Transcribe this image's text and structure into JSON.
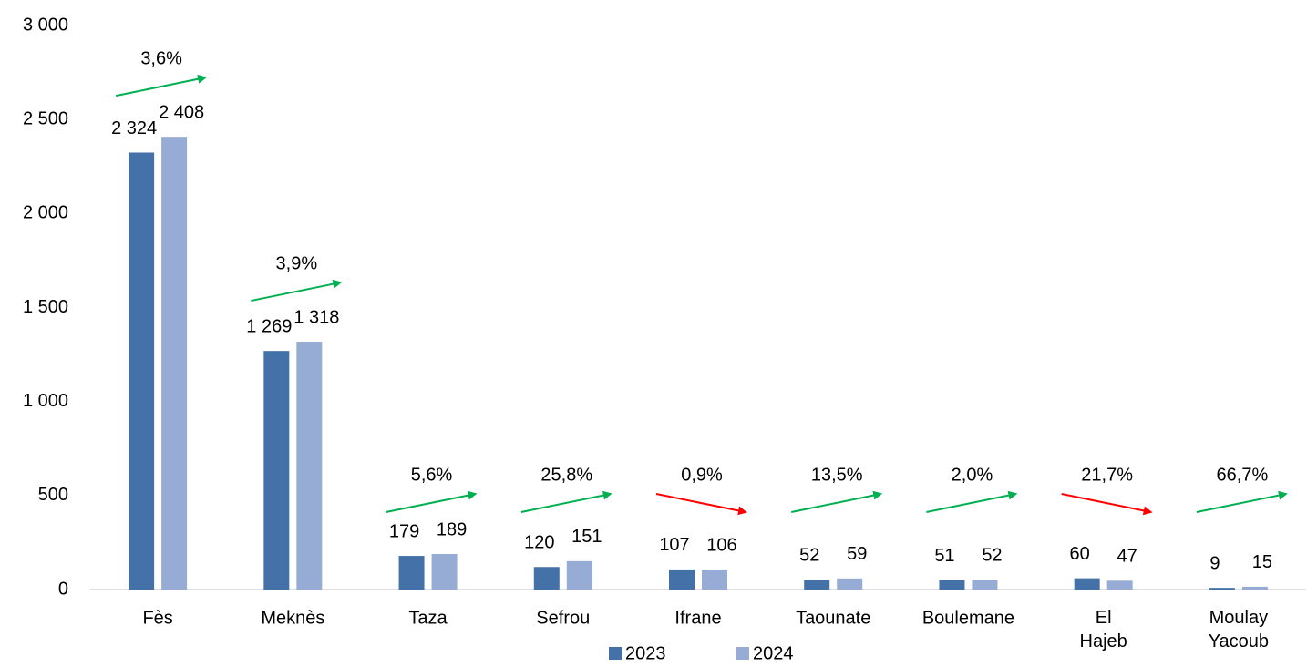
{
  "chart_data": {
    "type": "bar",
    "categories": [
      "Fès",
      "Meknès",
      "Taza",
      "Sefrou",
      "Ifrane",
      "Taounate",
      "Boulemane",
      "El Hajeb",
      "Moulay Yacoub"
    ],
    "series": [
      {
        "name": "2023",
        "color": "#4472a8",
        "values": [
          2324,
          1269,
          179,
          120,
          107,
          52,
          51,
          60,
          9
        ],
        "value_labels": [
          "2 324",
          "1 269",
          "179",
          "120",
          "107",
          "52",
          "51",
          "60",
          "9"
        ]
      },
      {
        "name": "2024",
        "color": "#96acd4",
        "values": [
          2408,
          1318,
          189,
          151,
          106,
          59,
          52,
          47,
          15
        ],
        "value_labels": [
          "2 408",
          "1 318",
          "189",
          "151",
          "106",
          "59",
          "52",
          "47",
          "15"
        ]
      }
    ],
    "annotations": [
      {
        "label": "3,6%",
        "color": "#00b050"
      },
      {
        "label": "3,9%",
        "color": "#00b050"
      },
      {
        "label": "5,6%",
        "color": "#00b050"
      },
      {
        "label": "25,8%",
        "color": "#00b050"
      },
      {
        "label": "0,9%",
        "color": "#ff0000"
      },
      {
        "label": "13,5%",
        "color": "#00b050"
      },
      {
        "label": "2,0%",
        "color": "#00b050"
      },
      {
        "label": "21,7%",
        "color": "#ff0000"
      },
      {
        "label": "66,7%",
        "color": "#00b050"
      }
    ],
    "ylim": [
      0,
      3000
    ],
    "yticks": [
      0,
      500,
      {
        "value": 1000,
        "label": "1 000"
      },
      {
        "value": 1500,
        "label": "1 500"
      },
      {
        "value": 2000,
        "label": "2 000"
      },
      {
        "value": 2500,
        "label": "2 500"
      },
      {
        "value": 3000,
        "label": "3 000"
      }
    ],
    "grid": false,
    "legend": "bottom"
  }
}
